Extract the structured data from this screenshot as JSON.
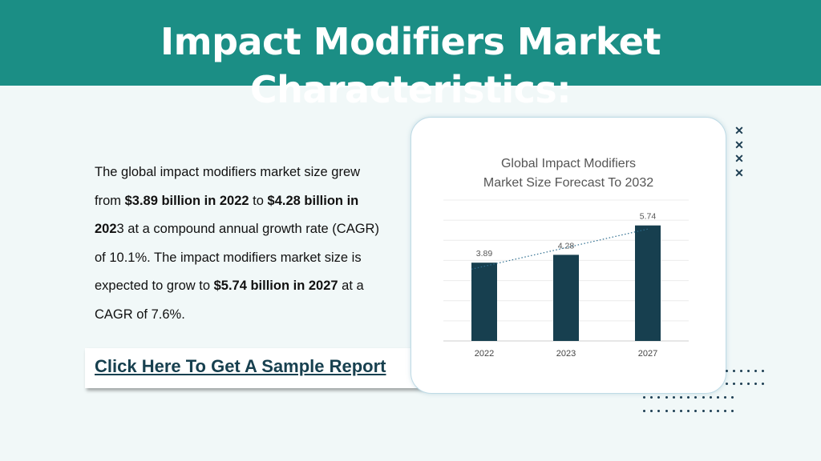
{
  "header": {
    "title": "Impact Modifiers Market Characteristics:"
  },
  "body": {
    "p1": "The global impact modifiers market size grew from ",
    "b1": "$3.89 billion in 2022",
    "p2": " to ",
    "b2": "$4.28 billion in 202",
    "p3": "3 at a compound annual growth rate (CAGR) of 10.1%. The impact modifiers market size is expected to grow to ",
    "b3": "$5.74 billion in 2027",
    "p4": " at a CAGR of 7.6%."
  },
  "cta": {
    "label": "Click Here To Get A Sample Report"
  },
  "colors": {
    "header_bg": "#1b8e85",
    "bar": "#173f4f",
    "cta_text": "#17404f"
  },
  "chart_data": {
    "type": "bar",
    "title": "Global Impact Modifiers Market Size Forecast To 2032",
    "title_line1": "Global Impact Modifiers",
    "title_line2": "Market Size Forecast To 2032",
    "categories": [
      "2022",
      "2023",
      "2027"
    ],
    "values": [
      3.89,
      4.28,
      5.74
    ],
    "data_labels": [
      "3.89",
      "4.28",
      "5.74"
    ],
    "ylim": [
      0,
      7
    ],
    "grid": true,
    "trendline": "dotted linear",
    "xlabel": "",
    "ylabel": ""
  }
}
